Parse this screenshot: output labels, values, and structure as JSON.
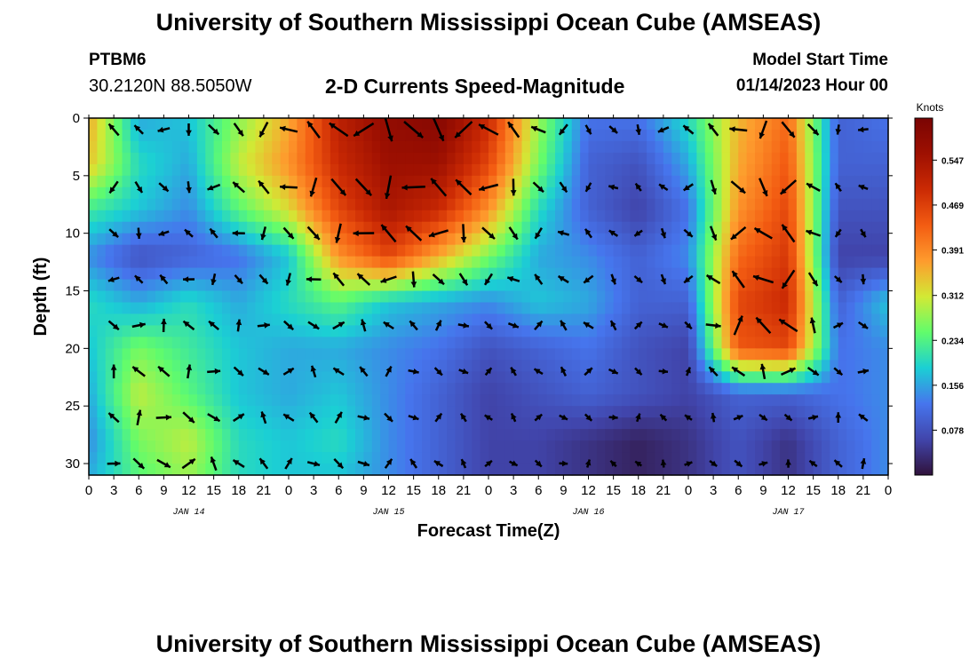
{
  "header": {
    "title": "University of Southern Mississippi Ocean Cube (AMSEAS)",
    "station": "PTBM6",
    "coords": "30.2120N  88.5050W",
    "subtitle": "2-D Currents Speed-Magnitude",
    "model_start_label": "Model Start Time",
    "model_start_value": "01/14/2023 Hour 00"
  },
  "footer": {
    "title": "University of Southern Mississippi Ocean Cube (AMSEAS)"
  },
  "chart_data": {
    "type": "heatmap",
    "xlabel": "Forecast Time(Z)",
    "ylabel": "Depth (ft)",
    "x_tick_labels": [
      "0",
      "3",
      "6",
      "9",
      "12",
      "15",
      "18",
      "21",
      "0",
      "3",
      "6",
      "9",
      "12",
      "15",
      "18",
      "21",
      "0",
      "3",
      "6",
      "9",
      "12",
      "15",
      "18",
      "21",
      "0",
      "3",
      "6",
      "9",
      "12",
      "15",
      "18",
      "21",
      "0"
    ],
    "day_labels": [
      "JAN 14",
      "JAN 15",
      "JAN 16",
      "JAN 17"
    ],
    "xlim_hours": [
      0,
      96
    ],
    "ylim_ft": [
      0,
      31
    ],
    "y_ticks": [
      0,
      5,
      10,
      15,
      20,
      25,
      30
    ],
    "colorbar": {
      "unit": "Knots",
      "ticks": [
        0.547,
        0.469,
        0.391,
        0.312,
        0.234,
        0.156,
        0.078
      ],
      "range": [
        0.0,
        0.62
      ]
    },
    "speed_depths_ft": [
      0,
      4,
      8,
      12,
      16,
      20,
      24,
      28,
      31
    ],
    "speed_hours": [
      0,
      6,
      12,
      18,
      24,
      30,
      36,
      42,
      48,
      54,
      60,
      66,
      72,
      78,
      84,
      90,
      96
    ],
    "speed_knots": [
      [
        0.36,
        0.16,
        0.18,
        0.27,
        0.36,
        0.52,
        0.58,
        0.6,
        0.5,
        0.28,
        0.12,
        0.12,
        0.2,
        0.35,
        0.42,
        0.1,
        0.12
      ],
      [
        0.34,
        0.2,
        0.16,
        0.3,
        0.38,
        0.5,
        0.56,
        0.56,
        0.46,
        0.26,
        0.1,
        0.08,
        0.16,
        0.36,
        0.44,
        0.1,
        0.1
      ],
      [
        0.22,
        0.18,
        0.14,
        0.24,
        0.32,
        0.46,
        0.54,
        0.5,
        0.38,
        0.2,
        0.1,
        0.06,
        0.12,
        0.38,
        0.46,
        0.08,
        0.08
      ],
      [
        0.14,
        0.08,
        0.1,
        0.12,
        0.18,
        0.38,
        0.46,
        0.36,
        0.26,
        0.16,
        0.14,
        0.1,
        0.14,
        0.42,
        0.48,
        0.06,
        0.06
      ],
      [
        0.2,
        0.16,
        0.2,
        0.16,
        0.2,
        0.24,
        0.18,
        0.16,
        0.14,
        0.18,
        0.16,
        0.1,
        0.1,
        0.46,
        0.5,
        0.1,
        0.18
      ],
      [
        0.18,
        0.26,
        0.22,
        0.18,
        0.16,
        0.16,
        0.14,
        0.12,
        0.08,
        0.1,
        0.12,
        0.08,
        0.06,
        0.44,
        0.46,
        0.12,
        0.14
      ],
      [
        0.16,
        0.3,
        0.24,
        0.18,
        0.16,
        0.18,
        0.14,
        0.1,
        0.06,
        0.08,
        0.1,
        0.08,
        0.06,
        0.1,
        0.1,
        0.12,
        0.14
      ],
      [
        0.14,
        0.26,
        0.3,
        0.2,
        0.18,
        0.2,
        0.14,
        0.1,
        0.06,
        0.06,
        0.04,
        0.02,
        0.04,
        0.08,
        0.04,
        0.1,
        0.14
      ],
      [
        0.16,
        0.24,
        0.28,
        0.2,
        0.18,
        0.18,
        0.14,
        0.1,
        0.06,
        0.06,
        0.04,
        0.02,
        0.04,
        0.08,
        0.04,
        0.1,
        0.14
      ]
    ],
    "vector_note": "arrows show current direction; length proportional to speed"
  }
}
